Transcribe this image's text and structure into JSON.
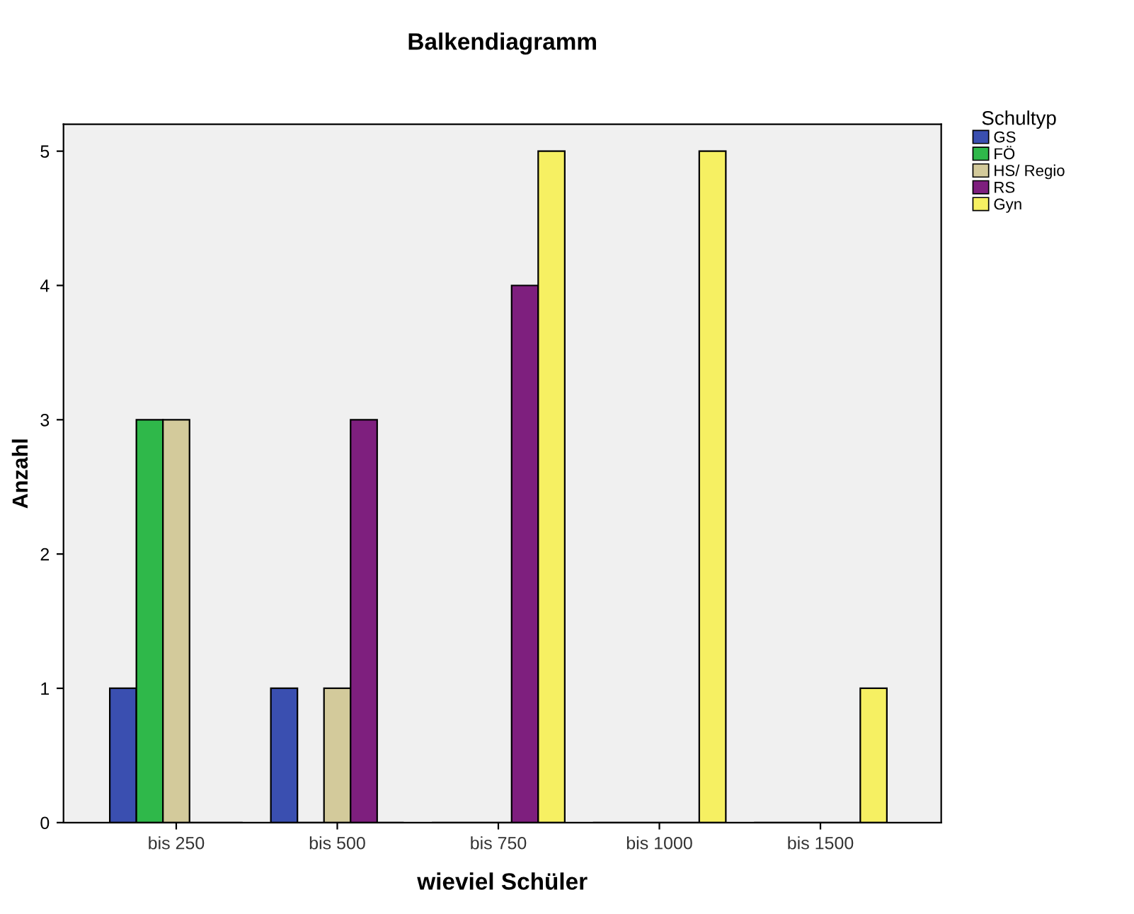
{
  "chart_data": {
    "type": "bar",
    "title": "Balkendiagramm",
    "xlabel": "wieviel Schüler",
    "ylabel": "Anzahl",
    "legend_title": "Schultyp",
    "categories": [
      "bis 250",
      "bis 500",
      "bis 750",
      "bis 1000",
      "bis 1500"
    ],
    "series": [
      {
        "name": "GS",
        "color": "#3a4fb0",
        "values": [
          1,
          1,
          0,
          0,
          0
        ]
      },
      {
        "name": "FÖ",
        "color": "#2fb84a",
        "values": [
          3,
          0,
          0,
          0,
          0
        ]
      },
      {
        "name": "HS/ Regio",
        "color": "#d3ca9b",
        "values": [
          3,
          1,
          0,
          0,
          0
        ]
      },
      {
        "name": "RS",
        "color": "#7e1f7e",
        "values": [
          0,
          3,
          4,
          0,
          0
        ]
      },
      {
        "name": "Gyn",
        "color": "#f6f062",
        "values": [
          0,
          0,
          5,
          5,
          1
        ]
      }
    ],
    "ylim": [
      0,
      5.2
    ],
    "yticks": [
      0,
      1,
      2,
      3,
      4,
      5
    ],
    "grid": false,
    "legend": "top right"
  }
}
